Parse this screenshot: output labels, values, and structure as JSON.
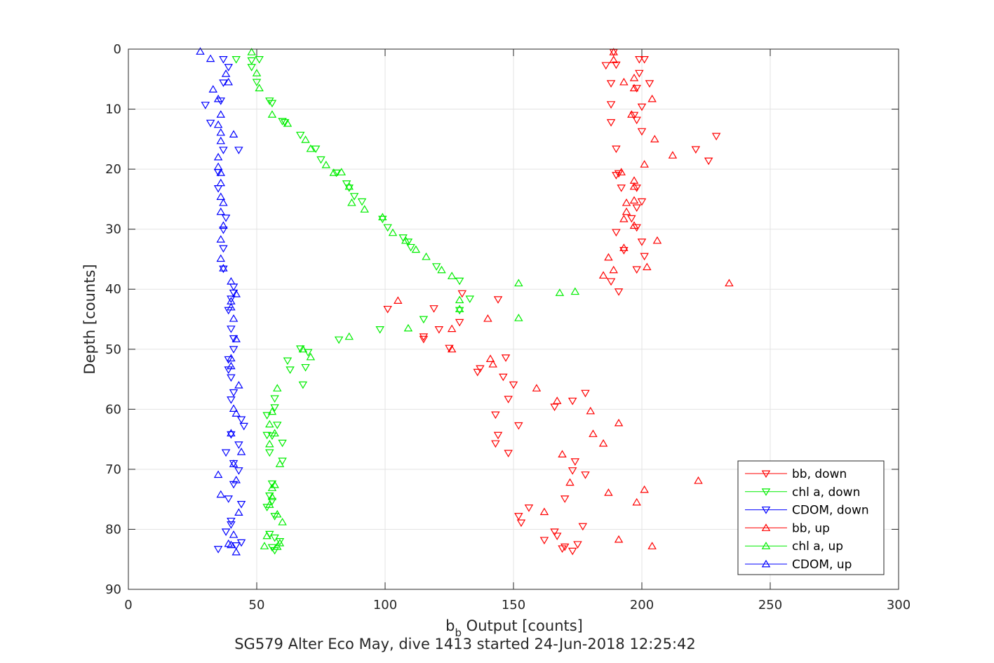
{
  "chart_data": {
    "type": "scatter",
    "title": "",
    "caption": "SG579 Alter Eco May, dive 1413 started 24-Jun-2018 12:25:42",
    "xlabel_main": "b",
    "xlabel_sub": "b",
    "xlabel_rest": " Output [counts]",
    "ylabel": "Depth [counts]",
    "xlim": [
      0,
      300
    ],
    "ylim": [
      0,
      90
    ],
    "y_reversed": true,
    "grid": true,
    "legend_position": "bottom-right",
    "x_ticks": [
      0,
      50,
      100,
      150,
      200,
      250,
      300
    ],
    "y_ticks": [
      0,
      10,
      20,
      30,
      40,
      50,
      60,
      70,
      80,
      90
    ],
    "series": [
      {
        "name": "bb, down",
        "color": "#ff0000",
        "marker": "triangle-down",
        "points": [
          [
            189,
            0.5
          ],
          [
            199,
            1.7
          ],
          [
            201,
            1.7
          ],
          [
            186,
            2.7
          ],
          [
            190,
            2.6
          ],
          [
            199,
            4.0
          ],
          [
            203,
            5.7
          ],
          [
            188,
            5.7
          ],
          [
            198,
            6.5
          ],
          [
            200,
            9.6
          ],
          [
            188,
            9.2
          ],
          [
            197,
            11.0
          ],
          [
            198,
            11.8
          ],
          [
            188,
            12.2
          ],
          [
            200,
            13.7
          ],
          [
            229,
            14.5
          ],
          [
            190,
            16.6
          ],
          [
            221,
            16.7
          ],
          [
            226,
            18.6
          ],
          [
            191,
            20.7
          ],
          [
            190,
            21.0
          ],
          [
            198,
            23.1
          ],
          [
            192,
            23.1
          ],
          [
            200,
            25.4
          ],
          [
            198,
            26.4
          ],
          [
            196,
            28.2
          ],
          [
            198,
            29.7
          ],
          [
            190,
            30.5
          ],
          [
            200,
            32.1
          ],
          [
            193,
            33.5
          ],
          [
            201,
            34.5
          ],
          [
            198,
            36.7
          ],
          [
            188,
            38.7
          ],
          [
            191,
            40.4
          ],
          [
            130,
            40.7
          ],
          [
            144,
            41.7
          ],
          [
            119,
            43.2
          ],
          [
            101,
            43.3
          ],
          [
            129,
            45.5
          ],
          [
            121,
            46.7
          ],
          [
            115,
            47.9
          ],
          [
            115,
            48.3
          ],
          [
            125,
            49.8
          ],
          [
            147,
            51.4
          ],
          [
            137,
            53.2
          ],
          [
            136,
            53.8
          ],
          [
            146,
            54.6
          ],
          [
            150,
            55.9
          ],
          [
            178,
            57.3
          ],
          [
            173,
            58.6
          ],
          [
            148,
            58.3
          ],
          [
            166,
            59.6
          ],
          [
            143,
            60.9
          ],
          [
            152,
            62.7
          ],
          [
            144,
            64.3
          ],
          [
            143,
            65.7
          ],
          [
            148,
            67.3
          ],
          [
            174,
            68.7
          ],
          [
            173,
            70.2
          ],
          [
            178,
            70.9
          ],
          [
            170,
            74.9
          ],
          [
            156,
            76.4
          ],
          [
            152,
            77.8
          ],
          [
            153,
            78.9
          ],
          [
            177,
            79.5
          ],
          [
            166,
            80.4
          ],
          [
            167,
            81.1
          ],
          [
            162,
            81.8
          ],
          [
            175,
            82.5
          ],
          [
            170,
            82.9
          ],
          [
            169,
            83.2
          ],
          [
            173,
            83.6
          ]
        ]
      },
      {
        "name": "chl a, down",
        "color": "#00ee00",
        "marker": "triangle-down",
        "points": [
          [
            42,
            1.7
          ],
          [
            51,
            1.7
          ],
          [
            48,
            1.9
          ],
          [
            48,
            3.0
          ],
          [
            50,
            5.5
          ],
          [
            55,
            8.6
          ],
          [
            56,
            9.0
          ],
          [
            60,
            12.0
          ],
          [
            61,
            12.2
          ],
          [
            67,
            14.3
          ],
          [
            73,
            16.6
          ],
          [
            75,
            18.4
          ],
          [
            81,
            20.6
          ],
          [
            85,
            22.4
          ],
          [
            86,
            23.1
          ],
          [
            88,
            24.5
          ],
          [
            91,
            25.4
          ],
          [
            99,
            28.3
          ],
          [
            101,
            29.7
          ],
          [
            107,
            31.4
          ],
          [
            109,
            32.1
          ],
          [
            110,
            33.0
          ],
          [
            120,
            36.2
          ],
          [
            129,
            38.6
          ],
          [
            133,
            41.6
          ],
          [
            129,
            43.5
          ],
          [
            115,
            45.0
          ],
          [
            98,
            46.7
          ],
          [
            82,
            48.4
          ],
          [
            67,
            49.9
          ],
          [
            70,
            50.5
          ],
          [
            62,
            51.9
          ],
          [
            69,
            53.0
          ],
          [
            63,
            53.4
          ],
          [
            68,
            55.9
          ],
          [
            57,
            58.2
          ],
          [
            57,
            59.7
          ],
          [
            54,
            61.0
          ],
          [
            58,
            62.6
          ],
          [
            54,
            64.3
          ],
          [
            56,
            64.4
          ],
          [
            60,
            65.6
          ],
          [
            55,
            67.2
          ],
          [
            60,
            68.6
          ],
          [
            56,
            72.4
          ],
          [
            55,
            74.4
          ],
          [
            56,
            75.3
          ],
          [
            54,
            76.3
          ],
          [
            57,
            77.8
          ],
          [
            55,
            80.8
          ],
          [
            57,
            81.4
          ],
          [
            59,
            82.0
          ],
          [
            56,
            83.0
          ],
          [
            57,
            83.5
          ]
        ]
      },
      {
        "name": "CDOM, down",
        "color": "#0000ff",
        "marker": "triangle-down",
        "points": [
          [
            37,
            1.7
          ],
          [
            39,
            3.0
          ],
          [
            37,
            5.6
          ],
          [
            36,
            8.6
          ],
          [
            30,
            9.3
          ],
          [
            32,
            12.3
          ],
          [
            37,
            16.8
          ],
          [
            43,
            16.8
          ],
          [
            35,
            20.5
          ],
          [
            35,
            23.2
          ],
          [
            38,
            28.1
          ],
          [
            37,
            30.1
          ],
          [
            37,
            33.2
          ],
          [
            37,
            36.6
          ],
          [
            41,
            39.6
          ],
          [
            41,
            40.6
          ],
          [
            40,
            41.6
          ],
          [
            39,
            43.5
          ],
          [
            40,
            46.6
          ],
          [
            41,
            48.2
          ],
          [
            41,
            50.0
          ],
          [
            39,
            51.7
          ],
          [
            39,
            53.4
          ],
          [
            40,
            54.7
          ],
          [
            41,
            57.2
          ],
          [
            40,
            58.4
          ],
          [
            44,
            61.7
          ],
          [
            45,
            62.8
          ],
          [
            40,
            64.2
          ],
          [
            43,
            65.9
          ],
          [
            38,
            67.2
          ],
          [
            41,
            69.0
          ],
          [
            43,
            70.2
          ],
          [
            41,
            72.5
          ],
          [
            39,
            74.9
          ],
          [
            44,
            75.8
          ],
          [
            40,
            78.6
          ],
          [
            40,
            79.2
          ],
          [
            38,
            80.4
          ],
          [
            44,
            82.2
          ],
          [
            42,
            82.7
          ],
          [
            35,
            83.3
          ]
        ]
      },
      {
        "name": "bb, up",
        "color": "#ff0000",
        "marker": "triangle-up",
        "points": [
          [
            189,
            0.5
          ],
          [
            189,
            1.8
          ],
          [
            197,
            4.8
          ],
          [
            193,
            5.5
          ],
          [
            197,
            6.5
          ],
          [
            204,
            8.3
          ],
          [
            196,
            10.9
          ],
          [
            205,
            15.0
          ],
          [
            212,
            17.7
          ],
          [
            201,
            19.2
          ],
          [
            192,
            20.5
          ],
          [
            197,
            21.9
          ],
          [
            197,
            22.9
          ],
          [
            197,
            25.2
          ],
          [
            194,
            25.6
          ],
          [
            194,
            27.1
          ],
          [
            193,
            28.3
          ],
          [
            197,
            29.4
          ],
          [
            206,
            31.9
          ],
          [
            193,
            33.1
          ],
          [
            187,
            34.7
          ],
          [
            202,
            36.3
          ],
          [
            189,
            36.8
          ],
          [
            185,
            37.7
          ],
          [
            234,
            39.0
          ],
          [
            105,
            41.9
          ],
          [
            140,
            44.9
          ],
          [
            126,
            46.6
          ],
          [
            126,
            50.0
          ],
          [
            141,
            51.6
          ],
          [
            142,
            52.5
          ],
          [
            159,
            56.5
          ],
          [
            167,
            58.6
          ],
          [
            180,
            60.3
          ],
          [
            191,
            62.3
          ],
          [
            181,
            64.1
          ],
          [
            185,
            65.7
          ],
          [
            169,
            67.5
          ],
          [
            222,
            71.9
          ],
          [
            172,
            72.2
          ],
          [
            201,
            73.4
          ],
          [
            187,
            73.9
          ],
          [
            198,
            75.5
          ],
          [
            162,
            77.1
          ],
          [
            191,
            81.7
          ],
          [
            204,
            82.8
          ]
        ]
      },
      {
        "name": "chl a, up",
        "color": "#00ee00",
        "marker": "triangle-up",
        "points": [
          [
            48,
            0.5
          ],
          [
            50,
            4.0
          ],
          [
            51,
            6.5
          ],
          [
            56,
            10.9
          ],
          [
            62,
            12.4
          ],
          [
            69,
            15.1
          ],
          [
            71,
            16.6
          ],
          [
            77,
            19.3
          ],
          [
            80,
            20.6
          ],
          [
            83,
            20.5
          ],
          [
            86,
            22.9
          ],
          [
            87,
            25.6
          ],
          [
            92,
            26.7
          ],
          [
            99,
            28.0
          ],
          [
            103,
            30.6
          ],
          [
            108,
            31.9
          ],
          [
            112,
            33.4
          ],
          [
            116,
            34.6
          ],
          [
            122,
            36.8
          ],
          [
            126,
            37.8
          ],
          [
            152,
            39.0
          ],
          [
            174,
            40.4
          ],
          [
            168,
            40.6
          ],
          [
            129,
            41.8
          ],
          [
            129,
            43.3
          ],
          [
            152,
            44.8
          ],
          [
            109,
            46.5
          ],
          [
            86,
            47.9
          ],
          [
            68,
            50.0
          ],
          [
            71,
            51.3
          ],
          [
            58,
            56.5
          ],
          [
            56,
            60.4
          ],
          [
            55,
            62.5
          ],
          [
            57,
            64.0
          ],
          [
            55,
            65.8
          ],
          [
            59,
            69.1
          ],
          [
            57,
            72.6
          ],
          [
            56,
            73.1
          ],
          [
            56,
            74.6
          ],
          [
            55,
            75.9
          ],
          [
            58,
            77.5
          ],
          [
            60,
            78.8
          ],
          [
            54,
            81.1
          ],
          [
            59,
            82.3
          ],
          [
            53,
            82.8
          ],
          [
            58,
            82.9
          ]
        ]
      },
      {
        "name": "CDOM, up",
        "color": "#0000ff",
        "marker": "triangle-up",
        "points": [
          [
            28,
            0.4
          ],
          [
            32,
            1.6
          ],
          [
            38,
            4.1
          ],
          [
            39,
            5.5
          ],
          [
            33,
            6.7
          ],
          [
            35,
            8.3
          ],
          [
            36,
            10.9
          ],
          [
            35,
            12.6
          ],
          [
            36,
            13.9
          ],
          [
            41,
            14.2
          ],
          [
            36,
            15.3
          ],
          [
            35,
            18.0
          ],
          [
            35,
            19.6
          ],
          [
            36,
            20.6
          ],
          [
            36,
            22.3
          ],
          [
            36,
            24.6
          ],
          [
            37,
            25.6
          ],
          [
            36,
            27.1
          ],
          [
            37,
            29.4
          ],
          [
            36,
            31.7
          ],
          [
            36,
            34.9
          ],
          [
            37,
            36.5
          ],
          [
            40,
            38.7
          ],
          [
            42,
            40.8
          ],
          [
            40,
            42.0
          ],
          [
            40,
            43.0
          ],
          [
            41,
            44.9
          ],
          [
            42,
            48.3
          ],
          [
            40,
            51.5
          ],
          [
            40,
            52.8
          ],
          [
            43,
            56.0
          ],
          [
            41,
            59.9
          ],
          [
            42,
            60.7
          ],
          [
            40,
            64.0
          ],
          [
            44,
            67.1
          ],
          [
            41,
            69.1
          ],
          [
            35,
            70.9
          ],
          [
            42,
            71.8
          ],
          [
            36,
            74.2
          ],
          [
            43,
            77.2
          ],
          [
            41,
            80.9
          ],
          [
            39,
            82.4
          ],
          [
            40,
            82.6
          ],
          [
            42,
            83.8
          ]
        ]
      }
    ]
  }
}
